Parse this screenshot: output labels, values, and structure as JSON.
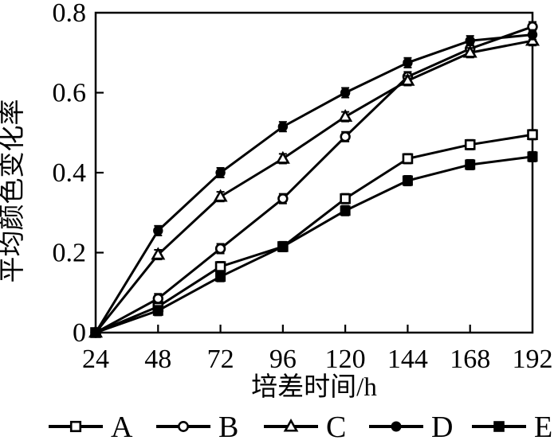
{
  "chart_data": {
    "type": "line",
    "title": "",
    "xlabel": "培差时间/h",
    "ylabel": "平均颜色变化率",
    "x": [
      24,
      48,
      72,
      96,
      120,
      144,
      168,
      192
    ],
    "xticks": [
      "24",
      "48",
      "72",
      "96",
      "120",
      "144",
      "168",
      "192"
    ],
    "yticks": [
      0,
      0.2,
      0.4,
      0.6,
      0.8
    ],
    "ytick_labels": [
      "0",
      "0.2",
      "0.4",
      "0.6",
      "0.8"
    ],
    "xlim": [
      24,
      192
    ],
    "ylim": [
      0,
      0.8
    ],
    "grid": false,
    "frame": "closed-box",
    "legend_position": "bottom",
    "error_bar_half_height": 0.012,
    "line_color": "#000000",
    "background_color": "#ffffff",
    "series": [
      {
        "name": "A",
        "marker": "open-square",
        "values": [
          0,
          0.065,
          0.165,
          0.215,
          0.335,
          0.435,
          0.47,
          0.495
        ]
      },
      {
        "name": "B",
        "marker": "open-circle",
        "values": [
          0,
          0.085,
          0.21,
          0.335,
          0.49,
          0.64,
          0.71,
          0.765
        ]
      },
      {
        "name": "C",
        "marker": "open-triangle",
        "values": [
          0,
          0.195,
          0.34,
          0.435,
          0.54,
          0.63,
          0.7,
          0.73
        ]
      },
      {
        "name": "D",
        "marker": "filled-circle",
        "values": [
          0,
          0.255,
          0.4,
          0.515,
          0.6,
          0.675,
          0.73,
          0.745
        ]
      },
      {
        "name": "E",
        "marker": "filled-square",
        "values": [
          0,
          0.055,
          0.14,
          0.215,
          0.305,
          0.38,
          0.42,
          0.44
        ]
      }
    ]
  }
}
